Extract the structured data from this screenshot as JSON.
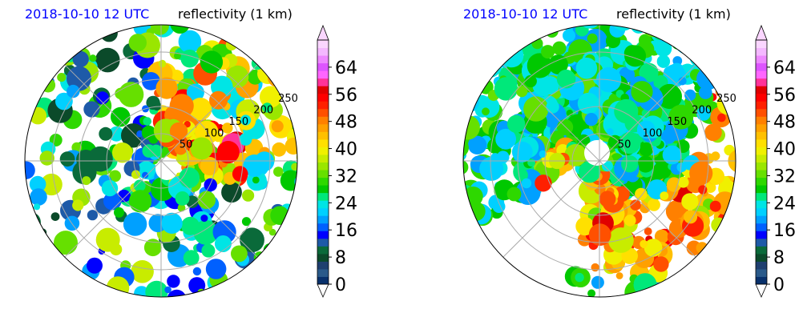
{
  "panels": [
    {
      "date_label": "2018-10-10 12 UTC",
      "var_label": "reflectivity (1 km)",
      "ring_labels": [
        "50",
        "100",
        "150",
        "200",
        "250"
      ],
      "colorbar_ticks": [
        "0",
        "8",
        "16",
        "24",
        "32",
        "40",
        "48",
        "56",
        "64"
      ]
    },
    {
      "date_label": "2018-10-10 12 UTC",
      "var_label": "reflectivity (1 km)",
      "ring_labels": [
        "50",
        "100",
        "150",
        "200",
        "250"
      ],
      "colorbar_ticks": [
        "0",
        "8",
        "16",
        "24",
        "32",
        "40",
        "48",
        "56",
        "64"
      ]
    }
  ],
  "chart_data": [
    {
      "type": "heatmap",
      "projection": "polar",
      "title": "reflectivity (1 km)",
      "subtitle": "2018-10-10 12 UTC",
      "radial_ticks": [
        50,
        100,
        150,
        200,
        250
      ],
      "colorbar": {
        "min": 0,
        "max": 72,
        "ticks": [
          0,
          8,
          16,
          24,
          32,
          40,
          48,
          56,
          64
        ],
        "extend": "both"
      },
      "grid": true
    },
    {
      "type": "heatmap",
      "projection": "polar",
      "title": "reflectivity (1 km)",
      "subtitle": "2018-10-10 12 UTC",
      "radial_ticks": [
        50,
        100,
        150,
        200,
        250
      ],
      "colorbar": {
        "min": 0,
        "max": 72,
        "ticks": [
          0,
          8,
          16,
          24,
          32,
          40,
          48,
          56,
          64
        ],
        "extend": "both"
      },
      "grid": true
    }
  ],
  "colormap": [
    "#08306b",
    "#2a5a8a",
    "#1f3f6f",
    "#0b4a2a",
    "#0a6a3a",
    "#1e5aa8",
    "#0000ff",
    "#0060ff",
    "#00a0ff",
    "#00d0ff",
    "#00e5e5",
    "#00e87a",
    "#00c800",
    "#2ed800",
    "#66e000",
    "#9ae600",
    "#c8ec00",
    "#f0f000",
    "#ffe000",
    "#ffc000",
    "#ffa000",
    "#ff8000",
    "#ff5000",
    "#ff2000",
    "#ff0000",
    "#e00000",
    "#ff3399",
    "#ff66ff",
    "#dd55ff",
    "#ee88ff",
    "#f4b8ff",
    "#fad6ff"
  ]
}
